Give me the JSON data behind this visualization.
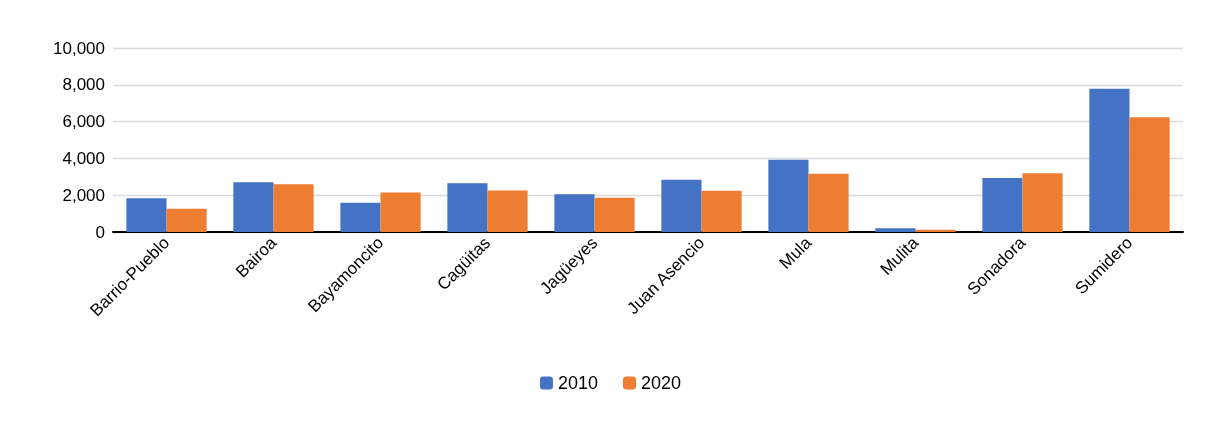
{
  "chart_data": {
    "type": "bar",
    "categories": [
      "Barrio-Pueblo",
      "Bairoa",
      "Bayamoncito",
      "Cagüitas",
      "Jagüeyes",
      "Juan Asencio",
      "Mula",
      "Mulita",
      "Sonadora",
      "Sumidero"
    ],
    "series": [
      {
        "name": "2010",
        "color": "#4472c4",
        "values": [
          1840,
          2710,
          1590,
          2650,
          2050,
          2840,
          3930,
          200,
          2940,
          7780
        ]
      },
      {
        "name": "2020",
        "color": "#ed7d31",
        "values": [
          1260,
          2600,
          2150,
          2250,
          1860,
          2240,
          3170,
          120,
          3190,
          6230
        ]
      }
    ],
    "ylim": [
      0,
      10000
    ],
    "yticks": [
      0,
      {
        "value": 2000,
        "label": "2,000"
      },
      {
        "value": 4000,
        "label": "4,000"
      },
      {
        "value": 6000,
        "label": "6,000"
      },
      {
        "value": 8000,
        "label": "8,000"
      },
      {
        "value": 10000,
        "label": "10,000"
      }
    ],
    "grid": "y",
    "legend": "bottom"
  }
}
